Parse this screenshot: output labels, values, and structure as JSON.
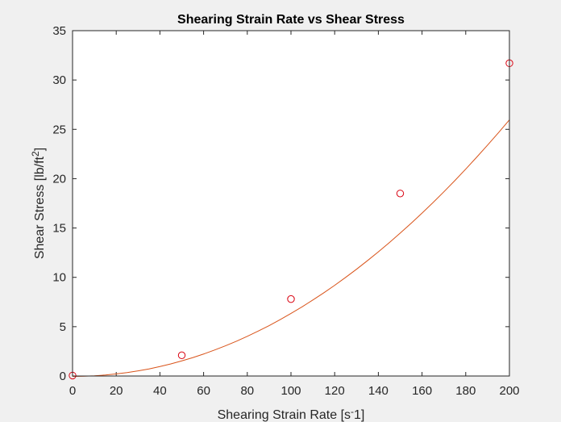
{
  "chart_data": {
    "type": "scatter",
    "title": "Shearing Strain Rate vs Shear Stress",
    "xlabel": "Shearing Strain Rate [s",
    "xlabel_sup": "-",
    "xlabel_tail": "1]",
    "ylabel": "Shear Stress [lb/ft",
    "ylabel_sup": "2",
    "ylabel_tail": "]",
    "xlim": [
      0,
      200
    ],
    "ylim": [
      0,
      35
    ],
    "xticks": [
      0,
      20,
      40,
      60,
      80,
      100,
      120,
      140,
      160,
      180,
      200
    ],
    "yticks": [
      0,
      5,
      10,
      15,
      20,
      25,
      30,
      35
    ],
    "grid": false,
    "series": [
      {
        "marker": "circle",
        "color": "#d9000f",
        "points": [
          {
            "x": 0,
            "y": 0.05
          },
          {
            "x": 50,
            "y": 2.1
          },
          {
            "x": 100,
            "y": 7.8
          },
          {
            "x": 150,
            "y": 18.5
          },
          {
            "x": 200,
            "y": 31.7
          }
        ]
      },
      {
        "type": "line",
        "color": "#d95319",
        "x": [
          0,
          5,
          10,
          15,
          20,
          25,
          30,
          35,
          40,
          45,
          50,
          55,
          60,
          65,
          70,
          75,
          80,
          85,
          90,
          95,
          100,
          105,
          110,
          115,
          120,
          125,
          130,
          135,
          140,
          145,
          150,
          155,
          160,
          165,
          170,
          175,
          180,
          185,
          190,
          195,
          200
        ],
        "y": [
          -0.04,
          -0.02,
          0.02,
          0.1,
          0.21,
          0.35,
          0.52,
          0.72,
          0.96,
          1.23,
          1.53,
          1.86,
          2.23,
          2.63,
          3.06,
          3.52,
          4.02,
          4.55,
          5.11,
          5.71,
          6.34,
          7.0,
          7.7,
          8.43,
          9.19,
          9.99,
          10.82,
          11.69,
          12.58,
          13.51,
          14.48,
          15.48,
          16.51,
          17.57,
          18.67,
          19.8,
          20.97,
          22.17,
          23.4,
          24.66,
          25.96
        ]
      }
    ]
  }
}
